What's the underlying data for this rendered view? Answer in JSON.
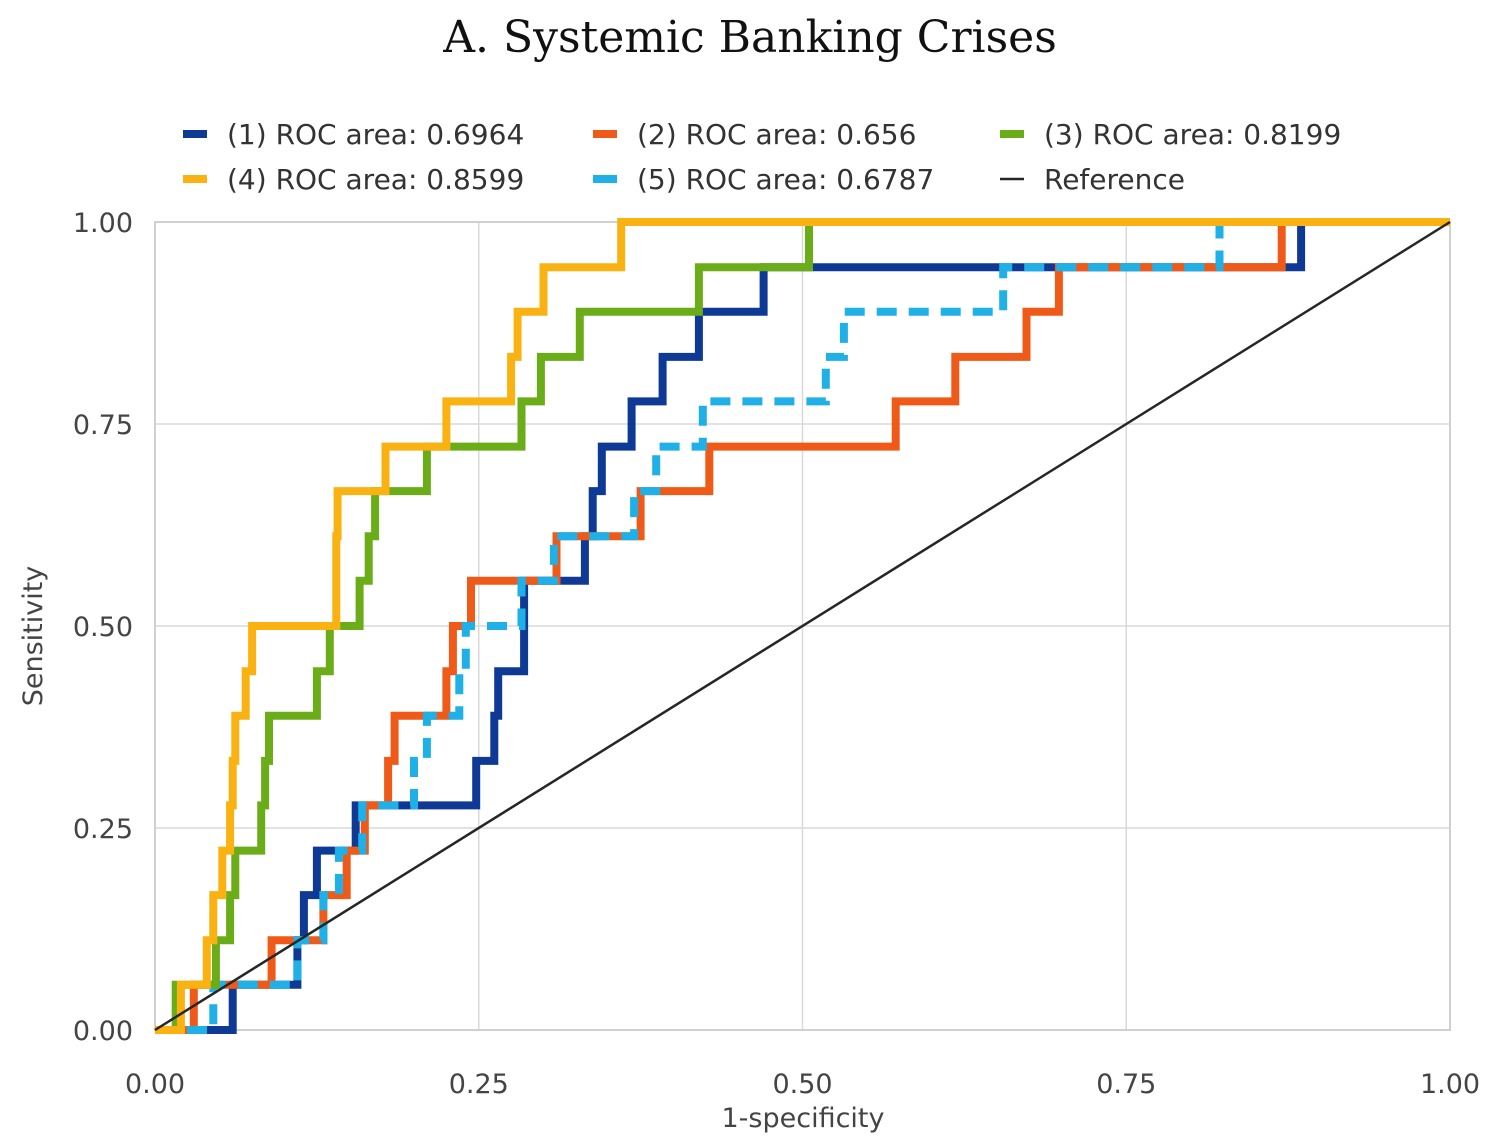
{
  "chart_data": {
    "type": "line",
    "title": "A. Systemic Banking Crises",
    "xlabel": "1-specificity",
    "ylabel": "Sensitivity",
    "xlim": [
      0,
      1
    ],
    "ylim": [
      0,
      1
    ],
    "x_ticks": [
      "0.00",
      "0.25",
      "0.50",
      "0.75",
      "1.00"
    ],
    "y_ticks": [
      "0.00",
      "0.25",
      "0.50",
      "0.75",
      "1.00"
    ],
    "grid": true,
    "legend_position": "top",
    "series": [
      {
        "name": "(1) ROC area: 0.6964",
        "color": "#0e3a96",
        "style": "solid",
        "points": [
          [
            0.0,
            0.0
          ],
          [
            0.06,
            0.0
          ],
          [
            0.06,
            0.056
          ],
          [
            0.11,
            0.056
          ],
          [
            0.11,
            0.111
          ],
          [
            0.115,
            0.111
          ],
          [
            0.115,
            0.167
          ],
          [
            0.125,
            0.167
          ],
          [
            0.125,
            0.222
          ],
          [
            0.155,
            0.222
          ],
          [
            0.155,
            0.278
          ],
          [
            0.248,
            0.278
          ],
          [
            0.248,
            0.333
          ],
          [
            0.262,
            0.333
          ],
          [
            0.262,
            0.389
          ],
          [
            0.265,
            0.389
          ],
          [
            0.265,
            0.444
          ],
          [
            0.285,
            0.444
          ],
          [
            0.285,
            0.556
          ],
          [
            0.332,
            0.556
          ],
          [
            0.332,
            0.611
          ],
          [
            0.338,
            0.611
          ],
          [
            0.338,
            0.667
          ],
          [
            0.345,
            0.667
          ],
          [
            0.345,
            0.722
          ],
          [
            0.368,
            0.722
          ],
          [
            0.368,
            0.778
          ],
          [
            0.392,
            0.778
          ],
          [
            0.392,
            0.833
          ],
          [
            0.42,
            0.833
          ],
          [
            0.42,
            0.889
          ],
          [
            0.47,
            0.889
          ],
          [
            0.47,
            0.944
          ],
          [
            0.885,
            0.944
          ],
          [
            0.885,
            1.0
          ],
          [
            1.0,
            1.0
          ]
        ]
      },
      {
        "name": "(2) ROC area: 0.656",
        "color": "#f05a18",
        "style": "solid",
        "points": [
          [
            0.0,
            0.0
          ],
          [
            0.03,
            0.0
          ],
          [
            0.03,
            0.056
          ],
          [
            0.09,
            0.056
          ],
          [
            0.09,
            0.111
          ],
          [
            0.13,
            0.111
          ],
          [
            0.13,
            0.167
          ],
          [
            0.148,
            0.167
          ],
          [
            0.148,
            0.222
          ],
          [
            0.162,
            0.222
          ],
          [
            0.162,
            0.278
          ],
          [
            0.18,
            0.278
          ],
          [
            0.18,
            0.333
          ],
          [
            0.185,
            0.333
          ],
          [
            0.185,
            0.389
          ],
          [
            0.225,
            0.389
          ],
          [
            0.225,
            0.444
          ],
          [
            0.23,
            0.444
          ],
          [
            0.23,
            0.5
          ],
          [
            0.244,
            0.5
          ],
          [
            0.244,
            0.556
          ],
          [
            0.31,
            0.556
          ],
          [
            0.31,
            0.611
          ],
          [
            0.375,
            0.611
          ],
          [
            0.375,
            0.667
          ],
          [
            0.428,
            0.667
          ],
          [
            0.428,
            0.722
          ],
          [
            0.572,
            0.722
          ],
          [
            0.572,
            0.778
          ],
          [
            0.618,
            0.778
          ],
          [
            0.618,
            0.833
          ],
          [
            0.673,
            0.833
          ],
          [
            0.673,
            0.889
          ],
          [
            0.698,
            0.889
          ],
          [
            0.698,
            0.944
          ],
          [
            0.87,
            0.944
          ],
          [
            0.87,
            1.0
          ],
          [
            1.0,
            1.0
          ]
        ]
      },
      {
        "name": "(3) ROC area: 0.8199",
        "color": "#6aad18",
        "style": "solid",
        "points": [
          [
            0.0,
            0.0
          ],
          [
            0.016,
            0.0
          ],
          [
            0.016,
            0.056
          ],
          [
            0.047,
            0.056
          ],
          [
            0.047,
            0.111
          ],
          [
            0.058,
            0.111
          ],
          [
            0.058,
            0.167
          ],
          [
            0.062,
            0.167
          ],
          [
            0.062,
            0.222
          ],
          [
            0.082,
            0.222
          ],
          [
            0.082,
            0.278
          ],
          [
            0.085,
            0.278
          ],
          [
            0.085,
            0.333
          ],
          [
            0.088,
            0.333
          ],
          [
            0.088,
            0.389
          ],
          [
            0.125,
            0.389
          ],
          [
            0.125,
            0.444
          ],
          [
            0.135,
            0.444
          ],
          [
            0.135,
            0.5
          ],
          [
            0.158,
            0.5
          ],
          [
            0.158,
            0.556
          ],
          [
            0.165,
            0.556
          ],
          [
            0.165,
            0.611
          ],
          [
            0.17,
            0.611
          ],
          [
            0.17,
            0.667
          ],
          [
            0.21,
            0.667
          ],
          [
            0.21,
            0.722
          ],
          [
            0.283,
            0.722
          ],
          [
            0.283,
            0.778
          ],
          [
            0.298,
            0.778
          ],
          [
            0.298,
            0.833
          ],
          [
            0.328,
            0.833
          ],
          [
            0.328,
            0.889
          ],
          [
            0.42,
            0.889
          ],
          [
            0.42,
            0.944
          ],
          [
            0.505,
            0.944
          ],
          [
            0.505,
            1.0
          ],
          [
            1.0,
            1.0
          ]
        ]
      },
      {
        "name": "(4) ROC area: 0.8599",
        "color": "#f9b211",
        "style": "solid",
        "points": [
          [
            0.0,
            0.0
          ],
          [
            0.02,
            0.0
          ],
          [
            0.02,
            0.056
          ],
          [
            0.04,
            0.056
          ],
          [
            0.04,
            0.111
          ],
          [
            0.045,
            0.111
          ],
          [
            0.045,
            0.167
          ],
          [
            0.052,
            0.167
          ],
          [
            0.052,
            0.222
          ],
          [
            0.058,
            0.222
          ],
          [
            0.058,
            0.278
          ],
          [
            0.06,
            0.278
          ],
          [
            0.06,
            0.333
          ],
          [
            0.062,
            0.333
          ],
          [
            0.062,
            0.389
          ],
          [
            0.07,
            0.389
          ],
          [
            0.07,
            0.444
          ],
          [
            0.075,
            0.444
          ],
          [
            0.075,
            0.5
          ],
          [
            0.14,
            0.5
          ],
          [
            0.14,
            0.611
          ],
          [
            0.141,
            0.611
          ],
          [
            0.141,
            0.667
          ],
          [
            0.178,
            0.667
          ],
          [
            0.178,
            0.722
          ],
          [
            0.225,
            0.722
          ],
          [
            0.225,
            0.778
          ],
          [
            0.275,
            0.778
          ],
          [
            0.275,
            0.833
          ],
          [
            0.28,
            0.833
          ],
          [
            0.28,
            0.889
          ],
          [
            0.3,
            0.889
          ],
          [
            0.3,
            0.944
          ],
          [
            0.36,
            0.944
          ],
          [
            0.36,
            1.0
          ],
          [
            1.0,
            1.0
          ]
        ]
      },
      {
        "name": "(5) ROC area: 0.6787",
        "color": "#1eb0e6",
        "style": "dashed",
        "points": [
          [
            0.0,
            0.0
          ],
          [
            0.045,
            0.0
          ],
          [
            0.045,
            0.056
          ],
          [
            0.11,
            0.056
          ],
          [
            0.11,
            0.111
          ],
          [
            0.13,
            0.111
          ],
          [
            0.13,
            0.167
          ],
          [
            0.142,
            0.167
          ],
          [
            0.142,
            0.222
          ],
          [
            0.16,
            0.222
          ],
          [
            0.16,
            0.278
          ],
          [
            0.2,
            0.278
          ],
          [
            0.2,
            0.333
          ],
          [
            0.21,
            0.333
          ],
          [
            0.21,
            0.389
          ],
          [
            0.235,
            0.389
          ],
          [
            0.235,
            0.444
          ],
          [
            0.24,
            0.444
          ],
          [
            0.24,
            0.5
          ],
          [
            0.283,
            0.5
          ],
          [
            0.283,
            0.556
          ],
          [
            0.308,
            0.556
          ],
          [
            0.308,
            0.611
          ],
          [
            0.37,
            0.611
          ],
          [
            0.37,
            0.667
          ],
          [
            0.387,
            0.667
          ],
          [
            0.387,
            0.722
          ],
          [
            0.423,
            0.722
          ],
          [
            0.423,
            0.778
          ],
          [
            0.518,
            0.778
          ],
          [
            0.518,
            0.833
          ],
          [
            0.532,
            0.833
          ],
          [
            0.532,
            0.889
          ],
          [
            0.655,
            0.889
          ],
          [
            0.655,
            0.944
          ],
          [
            0.822,
            0.944
          ],
          [
            0.822,
            1.0
          ],
          [
            1.0,
            1.0
          ]
        ]
      },
      {
        "name": "Reference",
        "color": "#262626",
        "style": "thin",
        "points": [
          [
            0.0,
            0.0
          ],
          [
            1.0,
            1.0
          ]
        ]
      }
    ]
  }
}
